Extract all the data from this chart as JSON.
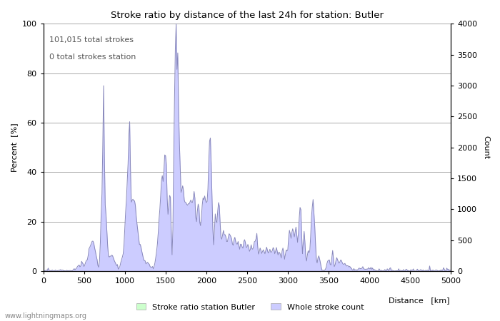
{
  "title": "Stroke ratio by distance of the last 24h for station: Butler",
  "xlabel": "Distance   [km]",
  "ylabel_left": "Percent  [%]",
  "ylabel_right": "Count",
  "annotation_line1": "101,015 total strokes",
  "annotation_line2": "0 total strokes station",
  "xlim": [
    0,
    5000
  ],
  "ylim_left": [
    0,
    100
  ],
  "ylim_right": [
    0,
    4000
  ],
  "x_ticks": [
    0,
    500,
    1000,
    1500,
    2000,
    2500,
    3000,
    3500,
    4000,
    4500,
    5000
  ],
  "y_ticks_left": [
    0,
    20,
    40,
    60,
    80,
    100
  ],
  "y_ticks_right": [
    0,
    500,
    1000,
    1500,
    2000,
    2500,
    3000,
    3500,
    4000
  ],
  "watermark": "www.lightningmaps.org",
  "legend_green": "Stroke ratio station Butler",
  "legend_blue": "Whole stroke count",
  "bg_color": "#ffffff",
  "grid_color": "#aaaaaa",
  "fill_color_blue": "#ccccff",
  "fill_color_green": "#ccffcc",
  "line_color": "#8888bb"
}
